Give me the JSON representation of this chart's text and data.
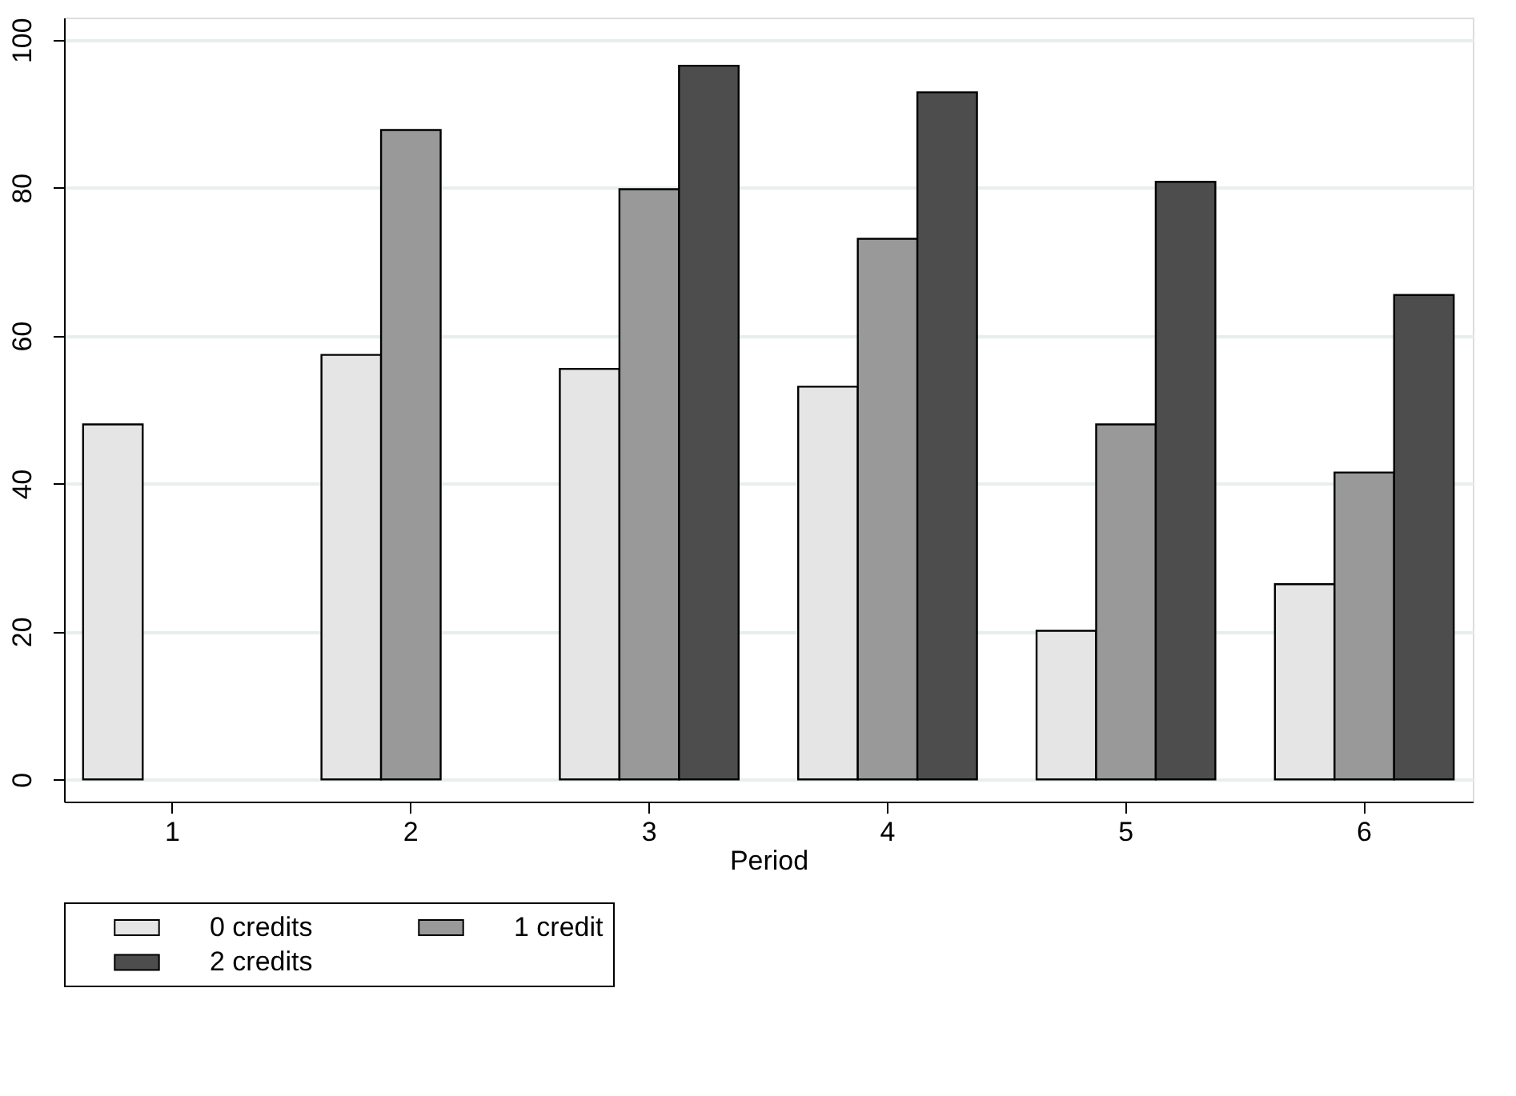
{
  "chart_data": {
    "type": "bar",
    "xlabel": "Period",
    "categories": [
      "1",
      "2",
      "3",
      "4",
      "5",
      "6"
    ],
    "series": [
      {
        "name": "0 credits",
        "color": "#e5e5e5",
        "values": [
          48.0,
          57.4,
          55.5,
          53.1,
          20.1,
          26.4
        ]
      },
      {
        "name": "1 credit",
        "color": "#999999",
        "values": [
          null,
          87.8,
          79.8,
          73.1,
          48.0,
          41.5
        ]
      },
      {
        "name": "2 credits",
        "color": "#4d4d4d",
        "values": [
          null,
          null,
          96.5,
          92.9,
          80.8,
          65.5
        ]
      }
    ],
    "ylim": [
      -3,
      103
    ],
    "yticks": [
      0,
      20,
      40,
      60,
      80,
      100
    ],
    "grid": "y",
    "legend": "bottom"
  }
}
